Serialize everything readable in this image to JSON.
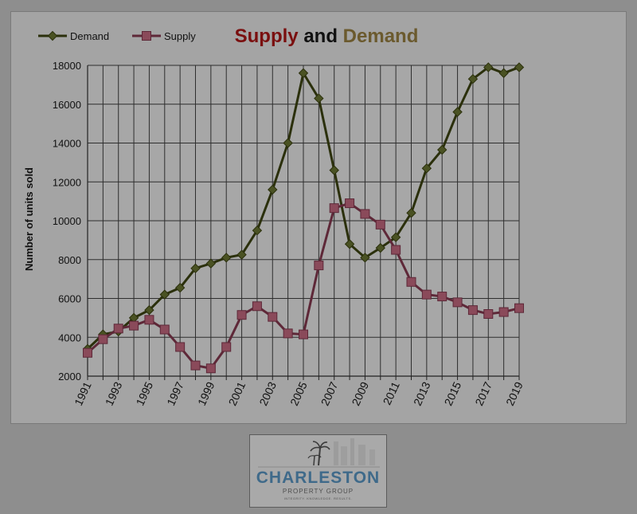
{
  "chart_data": {
    "type": "line",
    "title": {
      "part1": "Supply",
      "part2": " and ",
      "part3": "Demand"
    },
    "title_colors": {
      "part1": "#7a0f0f",
      "part2": "#111111",
      "part3": "#6b5a2e"
    },
    "ylabel": "Number of units sold",
    "xlabel": "",
    "ylim": [
      2000,
      18000
    ],
    "yticks": [
      2000,
      4000,
      6000,
      8000,
      10000,
      12000,
      14000,
      16000,
      18000
    ],
    "x": [
      1991,
      1992,
      1993,
      1994,
      1995,
      1996,
      1997,
      1998,
      1999,
      2000,
      2001,
      2002,
      2003,
      2004,
      2005,
      2006,
      2007,
      2008,
      2009,
      2010,
      2011,
      2012,
      2013,
      2014,
      2015,
      2016,
      2017,
      2018,
      2019
    ],
    "xtick_labels": [
      "1991",
      "1993",
      "1995",
      "1997",
      "1999",
      "2001",
      "2003",
      "2005",
      "2007",
      "2009",
      "2011",
      "2013",
      "2015",
      "2017",
      "2019"
    ],
    "grid": true,
    "legend_position": "top-left",
    "series": [
      {
        "name": "Demand",
        "color": "#2b300c",
        "marker": "diamond",
        "values": [
          3400,
          4150,
          4300,
          5000,
          5400,
          6200,
          6550,
          7550,
          7800,
          8100,
          8250,
          9500,
          11600,
          14000,
          17600,
          16300,
          12600,
          8800,
          8100,
          8600,
          9150,
          10400,
          12700,
          13650,
          15600,
          17300,
          17900,
          17600,
          17900
        ]
      },
      {
        "name": "Supply",
        "color": "#5e2838",
        "marker": "square",
        "values": [
          3200,
          3900,
          4450,
          4600,
          4900,
          4400,
          3500,
          2550,
          2400,
          3500,
          5150,
          5600,
          5050,
          4200,
          4150,
          7700,
          10650,
          10900,
          10350,
          9800,
          8500,
          6850,
          6200,
          6100,
          5800,
          5400,
          5200,
          5300,
          5500
        ]
      }
    ]
  },
  "logo": {
    "name": "CHARLESTON",
    "subtitle": "PROPERTY GROUP",
    "tagline": "INTEGRITY. KNOWLEDGE. RESULTS."
  }
}
